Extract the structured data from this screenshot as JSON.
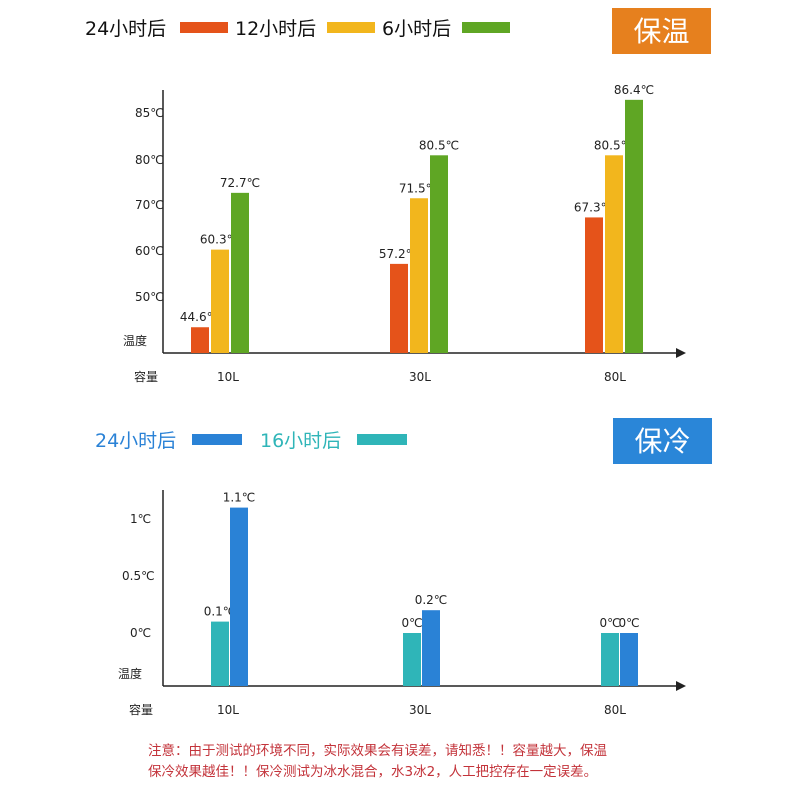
{
  "colors": {
    "orange": "#e5531a",
    "yellow": "#f2b61d",
    "green": "#5fa624",
    "blue": "#2a82d6",
    "cyan": "#2fb5b8",
    "badge_orange": "#e6801e",
    "badge_blue": "#2a86d8",
    "note": "#c3333a"
  },
  "chart_data": [
    {
      "type": "bar",
      "title": "保温",
      "xlabel": "容量",
      "ylabel": "温度",
      "categories": [
        "10L",
        "30L",
        "80L"
      ],
      "y_ticks": [
        {
          "value": 50,
          "label": "50℃"
        },
        {
          "value": 60,
          "label": "60℃"
        },
        {
          "value": 70,
          "label": "70℃"
        },
        {
          "value": 80,
          "label": "80℃"
        },
        {
          "value": 85,
          "label": "85℃"
        }
      ],
      "legend_position": "top-left",
      "series": [
        {
          "name": "24小时后",
          "color": "#e5531a",
          "values": [
            44.6,
            57.2,
            67.3
          ],
          "labels": [
            "44.6℃",
            "57.2℃",
            "67.3℃"
          ]
        },
        {
          "name": "12小时后",
          "color": "#f2b61d",
          "values": [
            60.3,
            71.5,
            80.5
          ],
          "labels": [
            "60.3℃",
            "71.5℃",
            "80.5℃"
          ]
        },
        {
          "name": "6小时后",
          "color": "#5fa624",
          "values": [
            72.7,
            80.5,
            86.4
          ],
          "labels": [
            "72.7℃",
            "80.5℃",
            "86.4℃"
          ]
        }
      ]
    },
    {
      "type": "bar",
      "title": "保冷",
      "xlabel": "容量",
      "ylabel": "温度",
      "categories": [
        "10L",
        "30L",
        "80L"
      ],
      "y_ticks": [
        {
          "value": 0,
          "label": "0℃"
        },
        {
          "value": 0.5,
          "label": "0.5℃"
        },
        {
          "value": 1,
          "label": "1℃"
        }
      ],
      "legend_position": "top-left",
      "series": [
        {
          "name": "24小时后",
          "color": "#2a82d6",
          "values": [
            1.1,
            0.2,
            0
          ],
          "labels": [
            "1.1℃",
            "0.2℃",
            "0℃"
          ]
        },
        {
          "name": "16小时后",
          "color": "#2fb5b8",
          "values": [
            0.1,
            0,
            0
          ],
          "labels": [
            "0.1℃",
            "0℃",
            "0℃"
          ]
        }
      ]
    }
  ],
  "note": [
    "注意：由于测试的环境不同，实际效果会有误差，请知悉！！容量越大，保温",
    "保冷效果越佳！！保冷测试为冰水混合，水3冰2，人工把控存在一定误差。"
  ]
}
